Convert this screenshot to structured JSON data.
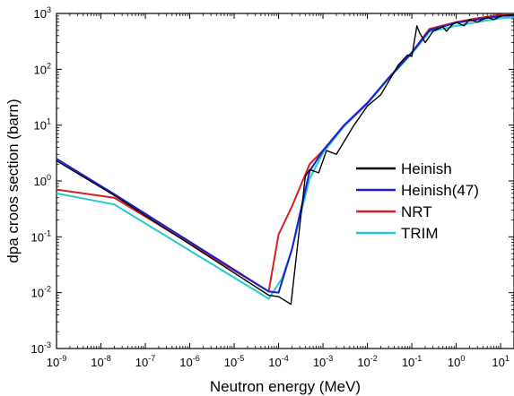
{
  "chart_data": {
    "type": "line",
    "xlabel": "Neutron energy (MeV)",
    "ylabel": "dpa croos section (barn)",
    "xscale": "log",
    "yscale": "log",
    "xlim": [
      1e-09,
      20
    ],
    "ylim": [
      0.001,
      1000
    ],
    "x_ticks": [
      "10-9",
      "10-8",
      "10-7",
      "10-6",
      "10-5",
      "10-4",
      "10-3",
      "10-2",
      "10-1",
      "100",
      "101"
    ],
    "y_ticks": [
      "10-3",
      "10-2",
      "10-1",
      "100",
      "101",
      "102",
      "103"
    ],
    "legend_position": "right",
    "series": [
      {
        "name": "Heinish",
        "color": "#000000",
        "x": [
          1e-09,
          2e-08,
          6e-05,
          0.0001,
          0.00019,
          0.0004,
          0.0005,
          0.0008,
          0.0012,
          0.002,
          0.005,
          0.01,
          0.02,
          0.05,
          0.08,
          0.1,
          0.13,
          0.15,
          0.2,
          0.3,
          0.5,
          0.6,
          0.8,
          1,
          1.5,
          2,
          3,
          5,
          7,
          10,
          20
        ],
        "y": [
          2.3,
          0.55,
          0.009,
          0.0085,
          0.0062,
          1.2,
          1.6,
          1.4,
          3.5,
          3.0,
          10,
          22,
          35,
          120,
          180,
          170,
          600,
          450,
          300,
          480,
          580,
          480,
          620,
          700,
          600,
          780,
          700,
          850,
          780,
          900,
          950
        ]
      },
      {
        "name": "Heinish(47)",
        "color": "#1c1cd4",
        "x": [
          1e-09,
          2e-08,
          6e-05,
          0.0001,
          0.0002,
          0.0005,
          0.001,
          0.003,
          0.01,
          0.03,
          0.1,
          0.25,
          1,
          3,
          10,
          20
        ],
        "y": [
          2.5,
          0.58,
          0.0105,
          0.01,
          0.06,
          1.5,
          3.5,
          10,
          25,
          70,
          200,
          500,
          680,
          780,
          900,
          920
        ]
      },
      {
        "name": "NRT",
        "color": "#d62020",
        "x": [
          1e-09,
          2e-08,
          6e-05,
          0.0001,
          0.0002,
          0.0005,
          0.001,
          0.003,
          0.01,
          0.03,
          0.1,
          0.25,
          1,
          3,
          10,
          20
        ],
        "y": [
          0.7,
          0.5,
          0.0105,
          0.11,
          0.35,
          2.0,
          3.5,
          10,
          25,
          70,
          200,
          530,
          700,
          820,
          950,
          1000
        ]
      },
      {
        "name": "TRIM",
        "color": "#22cccc",
        "x": [
          1e-09,
          2e-08,
          6e-05,
          0.00012,
          0.0002,
          0.0005,
          0.001,
          0.003,
          0.01,
          0.03,
          0.1,
          0.25,
          1,
          3,
          10,
          20
        ],
        "y": [
          0.6,
          0.38,
          0.0078,
          0.018,
          0.06,
          1.1,
          3.2,
          9.5,
          24,
          68,
          190,
          470,
          600,
          700,
          820,
          850
        ]
      }
    ]
  }
}
